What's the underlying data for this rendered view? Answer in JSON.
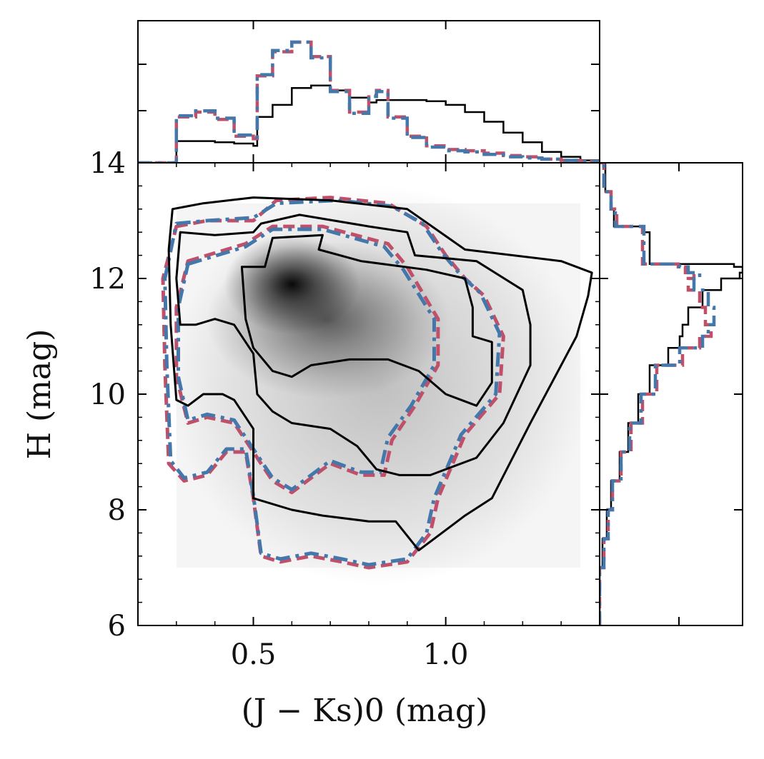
{
  "chart_data": [
    {
      "panel": "main",
      "type": "heatmap",
      "subtype": "density with contours (color-magnitude diagram)",
      "xlabel": "(J − Ks)0 (mag)",
      "ylabel": "H (mag)",
      "xlim": [
        0.2,
        1.4
      ],
      "ylim": [
        6,
        14
      ],
      "y_inverted": false,
      "xticks": [
        0.5,
        1.0
      ],
      "xtick_labels": [
        "0.5",
        "1.0"
      ],
      "yticks": [
        6,
        8,
        10,
        12,
        14
      ],
      "ytick_labels": [
        "6",
        "8",
        "10",
        "12",
        "14"
      ],
      "density_peak": {
        "x": 0.6,
        "y": 11.9
      },
      "density_region": {
        "x": [
          0.3,
          1.35
        ],
        "y": [
          7.0,
          13.3
        ]
      },
      "colors": {
        "model": "#000000",
        "red": "#c0506a",
        "blue": "#4477aa",
        "density": "#000000"
      },
      "contours": [
        {
          "series": "black-solid",
          "level": "outer",
          "points": [
            [
              0.29,
              13.2
            ],
            [
              0.37,
              13.3
            ],
            [
              0.5,
              13.4
            ],
            [
              0.7,
              13.35
            ],
            [
              0.9,
              13.2
            ],
            [
              1.05,
              12.5
            ],
            [
              1.3,
              12.3
            ],
            [
              1.38,
              12.1
            ],
            [
              1.37,
              11.7
            ],
            [
              1.34,
              11.0
            ],
            [
              1.3,
              10.5
            ],
            [
              1.22,
              9.5
            ],
            [
              1.12,
              8.2
            ],
            [
              1.05,
              7.9
            ],
            [
              0.93,
              7.3
            ],
            [
              0.87,
              7.8
            ],
            [
              0.8,
              7.8
            ],
            [
              0.68,
              7.9
            ],
            [
              0.6,
              8.0
            ],
            [
              0.5,
              8.2
            ],
            [
              0.5,
              9.4
            ],
            [
              0.45,
              9.9
            ],
            [
              0.42,
              10.0
            ],
            [
              0.37,
              10.0
            ],
            [
              0.33,
              9.8
            ],
            [
              0.3,
              9.9
            ],
            [
              0.285,
              11.2
            ],
            [
              0.28,
              12.5
            ],
            [
              0.29,
              13.2
            ]
          ]
        },
        {
          "series": "black-solid",
          "level": "middle",
          "points": [
            [
              0.31,
              12.8
            ],
            [
              0.4,
              12.75
            ],
            [
              0.5,
              12.8
            ],
            [
              0.52,
              12.95
            ],
            [
              0.62,
              13.1
            ],
            [
              0.8,
              12.9
            ],
            [
              0.9,
              12.8
            ],
            [
              0.92,
              12.4
            ],
            [
              1.08,
              12.3
            ],
            [
              1.2,
              11.8
            ],
            [
              1.22,
              11.2
            ],
            [
              1.22,
              10.5
            ],
            [
              1.15,
              9.5
            ],
            [
              1.08,
              8.9
            ],
            [
              0.96,
              8.6
            ],
            [
              0.88,
              8.6
            ],
            [
              0.82,
              8.7
            ],
            [
              0.77,
              9.1
            ],
            [
              0.7,
              9.4
            ],
            [
              0.6,
              9.5
            ],
            [
              0.55,
              9.7
            ],
            [
              0.51,
              10.0
            ],
            [
              0.5,
              10.7
            ],
            [
              0.45,
              11.2
            ],
            [
              0.4,
              11.3
            ],
            [
              0.35,
              11.2
            ],
            [
              0.31,
              11.2
            ],
            [
              0.3,
              12.0
            ],
            [
              0.31,
              12.8
            ]
          ]
        },
        {
          "series": "black-solid",
          "level": "inner",
          "points": [
            [
              0.55,
              12.7
            ],
            [
              0.68,
              12.75
            ],
            [
              0.67,
              12.5
            ],
            [
              0.78,
              12.3
            ],
            [
              0.95,
              12.15
            ],
            [
              1.05,
              12.0
            ],
            [
              1.07,
              11.5
            ],
            [
              1.07,
              11.0
            ],
            [
              1.12,
              10.9
            ],
            [
              1.12,
              10.2
            ],
            [
              1.08,
              9.8
            ],
            [
              1.0,
              10.0
            ],
            [
              0.93,
              10.4
            ],
            [
              0.85,
              10.6
            ],
            [
              0.75,
              10.6
            ],
            [
              0.65,
              10.5
            ],
            [
              0.6,
              10.3
            ],
            [
              0.55,
              10.4
            ],
            [
              0.5,
              10.8
            ],
            [
              0.48,
              11.3
            ],
            [
              0.47,
              12.2
            ],
            [
              0.53,
              12.2
            ],
            [
              0.55,
              12.7
            ]
          ]
        },
        {
          "series": "red-dashed",
          "level": "outer",
          "points": [
            [
              0.3,
              12.9
            ],
            [
              0.38,
              13.0
            ],
            [
              0.5,
              13.0
            ],
            [
              0.56,
              13.35
            ],
            [
              0.7,
              13.4
            ],
            [
              0.85,
              13.3
            ],
            [
              0.95,
              12.9
            ],
            [
              1.0,
              12.4
            ],
            [
              1.05,
              12.0
            ],
            [
              1.1,
              11.7
            ],
            [
              1.15,
              11.0
            ],
            [
              1.14,
              10.0
            ],
            [
              1.05,
              9.3
            ],
            [
              0.98,
              8.2
            ],
            [
              0.96,
              7.6
            ],
            [
              0.9,
              7.1
            ],
            [
              0.8,
              7.0
            ],
            [
              0.73,
              7.1
            ],
            [
              0.65,
              7.2
            ],
            [
              0.57,
              7.1
            ],
            [
              0.52,
              7.2
            ],
            [
              0.5,
              8.2
            ],
            [
              0.48,
              9.0
            ],
            [
              0.43,
              9.0
            ],
            [
              0.38,
              8.6
            ],
            [
              0.32,
              8.5
            ],
            [
              0.28,
              8.8
            ],
            [
              0.27,
              10.5
            ],
            [
              0.265,
              12.0
            ],
            [
              0.3,
              12.9
            ]
          ]
        },
        {
          "series": "red-dashed",
          "level": "middle",
          "points": [
            [
              0.33,
              12.3
            ],
            [
              0.43,
              12.5
            ],
            [
              0.48,
              12.6
            ],
            [
              0.55,
              12.9
            ],
            [
              0.68,
              12.9
            ],
            [
              0.85,
              12.6
            ],
            [
              0.9,
              12.2
            ],
            [
              0.98,
              11.3
            ],
            [
              0.98,
              10.5
            ],
            [
              0.92,
              9.8
            ],
            [
              0.86,
              9.2
            ],
            [
              0.84,
              8.6
            ],
            [
              0.78,
              8.6
            ],
            [
              0.7,
              8.8
            ],
            [
              0.6,
              8.3
            ],
            [
              0.55,
              8.5
            ],
            [
              0.5,
              9.0
            ],
            [
              0.45,
              9.5
            ],
            [
              0.38,
              9.6
            ],
            [
              0.33,
              9.5
            ],
            [
              0.3,
              10.3
            ],
            [
              0.3,
              11.5
            ],
            [
              0.33,
              12.3
            ]
          ]
        },
        {
          "series": "blue-dashdot",
          "level": "outer",
          "points": [
            [
              0.3,
              12.95
            ],
            [
              0.38,
              13.0
            ],
            [
              0.5,
              13.05
            ],
            [
              0.56,
              13.3
            ],
            [
              0.72,
              13.35
            ],
            [
              0.86,
              13.25
            ],
            [
              0.94,
              12.95
            ],
            [
              0.99,
              12.45
            ],
            [
              1.04,
              12.05
            ],
            [
              1.09,
              11.75
            ],
            [
              1.14,
              11.05
            ],
            [
              1.13,
              10.0
            ],
            [
              1.04,
              9.3
            ],
            [
              0.97,
              8.2
            ],
            [
              0.95,
              7.6
            ],
            [
              0.9,
              7.15
            ],
            [
              0.8,
              7.05
            ],
            [
              0.73,
              7.15
            ],
            [
              0.65,
              7.25
            ],
            [
              0.57,
              7.15
            ],
            [
              0.52,
              7.25
            ],
            [
              0.5,
              8.25
            ],
            [
              0.48,
              9.05
            ],
            [
              0.43,
              9.05
            ],
            [
              0.38,
              8.65
            ],
            [
              0.32,
              8.55
            ],
            [
              0.285,
              8.85
            ],
            [
              0.275,
              10.5
            ],
            [
              0.27,
              12.0
            ],
            [
              0.3,
              12.95
            ]
          ]
        },
        {
          "series": "blue-dashdot",
          "level": "middle",
          "points": [
            [
              0.33,
              12.25
            ],
            [
              0.43,
              12.45
            ],
            [
              0.48,
              12.55
            ],
            [
              0.55,
              12.85
            ],
            [
              0.68,
              12.85
            ],
            [
              0.84,
              12.55
            ],
            [
              0.89,
              12.15
            ],
            [
              0.97,
              11.3
            ],
            [
              0.97,
              10.5
            ],
            [
              0.91,
              9.8
            ],
            [
              0.85,
              9.25
            ],
            [
              0.83,
              8.65
            ],
            [
              0.78,
              8.65
            ],
            [
              0.7,
              8.85
            ],
            [
              0.6,
              8.35
            ],
            [
              0.55,
              8.55
            ],
            [
              0.5,
              9.05
            ],
            [
              0.45,
              9.55
            ],
            [
              0.38,
              9.65
            ],
            [
              0.33,
              9.55
            ],
            [
              0.305,
              10.3
            ],
            [
              0.305,
              11.5
            ],
            [
              0.33,
              12.25
            ]
          ]
        }
      ]
    },
    {
      "panel": "top-marginal",
      "type": "line",
      "subtype": "step histogram of (J − Ks)0",
      "xlim": [
        0.2,
        1.4
      ],
      "ylim": [
        0,
        1
      ],
      "x": [
        0.2,
        0.29,
        0.3,
        0.35,
        0.4,
        0.45,
        0.5,
        0.51,
        0.55,
        0.6,
        0.65,
        0.7,
        0.75,
        0.8,
        0.82,
        0.85,
        0.9,
        0.95,
        1.0,
        1.05,
        1.1,
        1.15,
        1.2,
        1.25,
        1.3,
        1.35,
        1.4
      ],
      "series": [
        {
          "name": "black-solid",
          "values": [
            0,
            0.0,
            0.18,
            0.18,
            0.17,
            0.16,
            0.14,
            0.38,
            0.48,
            0.62,
            0.64,
            0.6,
            0.54,
            0.5,
            0.52,
            0.52,
            0.52,
            0.51,
            0.48,
            0.42,
            0.34,
            0.25,
            0.17,
            0.09,
            0.05,
            0.02,
            0.0
          ]
        },
        {
          "name": "red-dashed",
          "values": [
            0,
            0.0,
            0.38,
            0.42,
            0.36,
            0.22,
            0.2,
            0.72,
            0.92,
            1.0,
            0.88,
            0.6,
            0.42,
            0.56,
            0.6,
            0.38,
            0.22,
            0.14,
            0.11,
            0.1,
            0.08,
            0.06,
            0.05,
            0.03,
            0.02,
            0.01,
            0.0
          ]
        },
        {
          "name": "blue-dashdot",
          "values": [
            0,
            0.0,
            0.39,
            0.43,
            0.37,
            0.23,
            0.21,
            0.73,
            0.93,
            1.0,
            0.87,
            0.59,
            0.41,
            0.55,
            0.59,
            0.37,
            0.21,
            0.13,
            0.1,
            0.09,
            0.07,
            0.05,
            0.04,
            0.03,
            0.02,
            0.01,
            0.0
          ]
        }
      ],
      "xticks": [
        0.5,
        1.0
      ]
    },
    {
      "panel": "right-marginal",
      "type": "line",
      "subtype": "step histogram of H (horizontal)",
      "ylim": [
        6,
        14
      ],
      "xlim": [
        0,
        1
      ],
      "y": [
        6.0,
        6.8,
        7.0,
        7.5,
        8.0,
        8.5,
        9.0,
        9.5,
        10.0,
        10.5,
        10.8,
        11.0,
        11.2,
        11.5,
        11.8,
        12.0,
        12.1,
        12.2,
        12.25,
        12.8,
        12.9,
        13.2,
        13.5,
        14.0
      ],
      "series": [
        {
          "name": "black-solid",
          "values": [
            0.0,
            0.0,
            0.02,
            0.05,
            0.08,
            0.14,
            0.2,
            0.27,
            0.35,
            0.48,
            0.56,
            0.58,
            0.62,
            0.72,
            0.85,
            0.98,
            1.0,
            0.94,
            0.35,
            0.3,
            0.1,
            0.08,
            0.04,
            0.0
          ]
        },
        {
          "name": "red-dashed",
          "values": [
            0.0,
            0.0,
            0.03,
            0.06,
            0.09,
            0.15,
            0.22,
            0.3,
            0.4,
            0.58,
            0.7,
            0.78,
            0.74,
            0.7,
            0.62,
            0.66,
            0.6,
            0.55,
            0.3,
            0.3,
            0.12,
            0.08,
            0.03,
            0.0
          ]
        },
        {
          "name": "blue-dashdot",
          "values": [
            0.0,
            0.0,
            0.03,
            0.06,
            0.09,
            0.15,
            0.21,
            0.29,
            0.39,
            0.56,
            0.72,
            0.76,
            0.8,
            0.76,
            0.66,
            0.7,
            0.62,
            0.56,
            0.31,
            0.31,
            0.11,
            0.08,
            0.03,
            0.0
          ]
        }
      ],
      "yticks": [
        8,
        10,
        12
      ]
    }
  ]
}
